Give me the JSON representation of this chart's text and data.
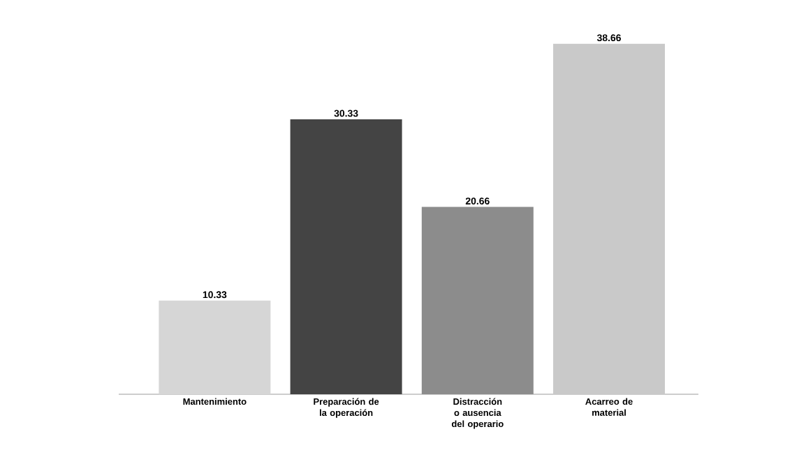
{
  "chart_data": {
    "type": "bar",
    "categories": [
      "Mantenimiento",
      "Preparación de la operación",
      "Distracción o ausencia del operario",
      "Acarreo de material"
    ],
    "values": [
      10.33,
      30.33,
      20.66,
      38.66
    ],
    "colors": [
      "#d6d6d6",
      "#444444",
      "#8c8c8c",
      "#c9c9c9"
    ],
    "data_labels": true
  }
}
